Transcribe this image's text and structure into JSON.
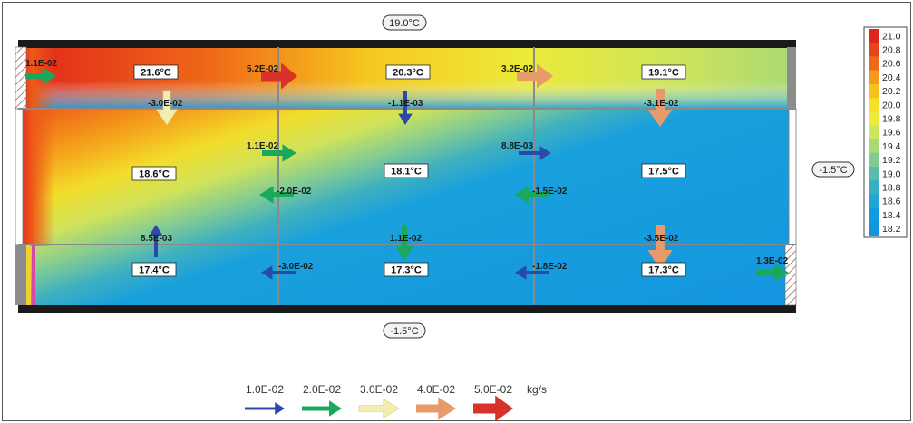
{
  "boundaries": {
    "top": "19.0°C",
    "right": "-1.5°C",
    "bottom": "-1.5°C"
  },
  "colorbar": {
    "ticks": [
      "21.0",
      "20.8",
      "20.6",
      "20.4",
      "20.2",
      "20.0",
      "19.8",
      "19.6",
      "19.4",
      "19.2",
      "19.0",
      "18.8",
      "18.6",
      "18.4",
      "18.2"
    ],
    "colors": [
      "#e0261c",
      "#e8441a",
      "#ef6a18",
      "#f59a1a",
      "#f8bf1e",
      "#f6df27",
      "#eaeb3a",
      "#cbe55c",
      "#a6da78",
      "#7fcb92",
      "#5bbbaa",
      "#3aaec4",
      "#22a4d6",
      "#129ce0",
      "#1296e2"
    ]
  },
  "cells": [
    {
      "name": "top-left",
      "temp": "21.6°C"
    },
    {
      "name": "top-middle",
      "temp": "20.3°C"
    },
    {
      "name": "top-right",
      "temp": "19.1°C"
    },
    {
      "name": "middle-left",
      "temp": "18.6°C"
    },
    {
      "name": "middle-middle",
      "temp": "18.1°C"
    },
    {
      "name": "middle-right",
      "temp": "17.5°C"
    },
    {
      "name": "bottom-left",
      "temp": "17.4°C"
    },
    {
      "name": "bottom-middle",
      "temp": "17.3°C"
    },
    {
      "name": "bottom-right",
      "temp": "17.3°C"
    }
  ],
  "flows": [
    {
      "name": "inlet-top-left",
      "label": "1.1E-02",
      "dir": "right",
      "color": "#1aa85a"
    },
    {
      "name": "top-horizontal-1",
      "label": "5.2E-02",
      "dir": "right",
      "color": "#d8322a"
    },
    {
      "name": "top-horizontal-2",
      "label": "3.2E-02",
      "dir": "right",
      "color": "#e99a6a"
    },
    {
      "name": "top-left-down",
      "label": "-3.0E-02",
      "dir": "down",
      "color": "#f3eeb0"
    },
    {
      "name": "top-middle-down",
      "label": "-1.1E-03",
      "dir": "down",
      "color": "#2a49a8"
    },
    {
      "name": "top-right-down",
      "label": "-3.1E-02",
      "dir": "down",
      "color": "#e99a6a"
    },
    {
      "name": "mid-horizontal-upper-1",
      "label": "1.1E-02",
      "dir": "right",
      "color": "#1aa85a"
    },
    {
      "name": "mid-horizontal-upper-2",
      "label": "8.8E-03",
      "dir": "right",
      "color": "#2a49a8"
    },
    {
      "name": "mid-horizontal-lower-1",
      "label": "-2.0E-02",
      "dir": "left",
      "color": "#1aa85a"
    },
    {
      "name": "mid-horizontal-lower-2",
      "label": "-1.5E-02",
      "dir": "left",
      "color": "#1aa85a"
    },
    {
      "name": "bottom-left-up",
      "label": "8.5E-03",
      "dir": "up",
      "color": "#2a49a8"
    },
    {
      "name": "bottom-middle-down",
      "label": "1.1E-02",
      "dir": "down",
      "color": "#1aa85a"
    },
    {
      "name": "bottom-right-down",
      "label": "-3.5E-02",
      "dir": "down",
      "color": "#e99a6a"
    },
    {
      "name": "bottom-horizontal-1",
      "label": "-3.0E-02",
      "dir": "left",
      "color": "#2a49a8"
    },
    {
      "name": "bottom-horizontal-2",
      "label": "-1.8E-02",
      "dir": "left",
      "color": "#2a49a8"
    },
    {
      "name": "outlet-bottom-right",
      "label": "1.3E-02",
      "dir": "right",
      "color": "#1aa85a"
    }
  ],
  "legend": {
    "items": [
      {
        "label": "1.0E-02",
        "color": "#2a49a8"
      },
      {
        "label": "2.0E-02",
        "color": "#1aa85a"
      },
      {
        "label": "3.0E-02",
        "color": "#f3eeb0"
      },
      {
        "label": "4.0E-02",
        "color": "#e99a6a"
      },
      {
        "label": "5.0E-02",
        "color": "#d8322a"
      }
    ],
    "unit": "kg/s"
  }
}
